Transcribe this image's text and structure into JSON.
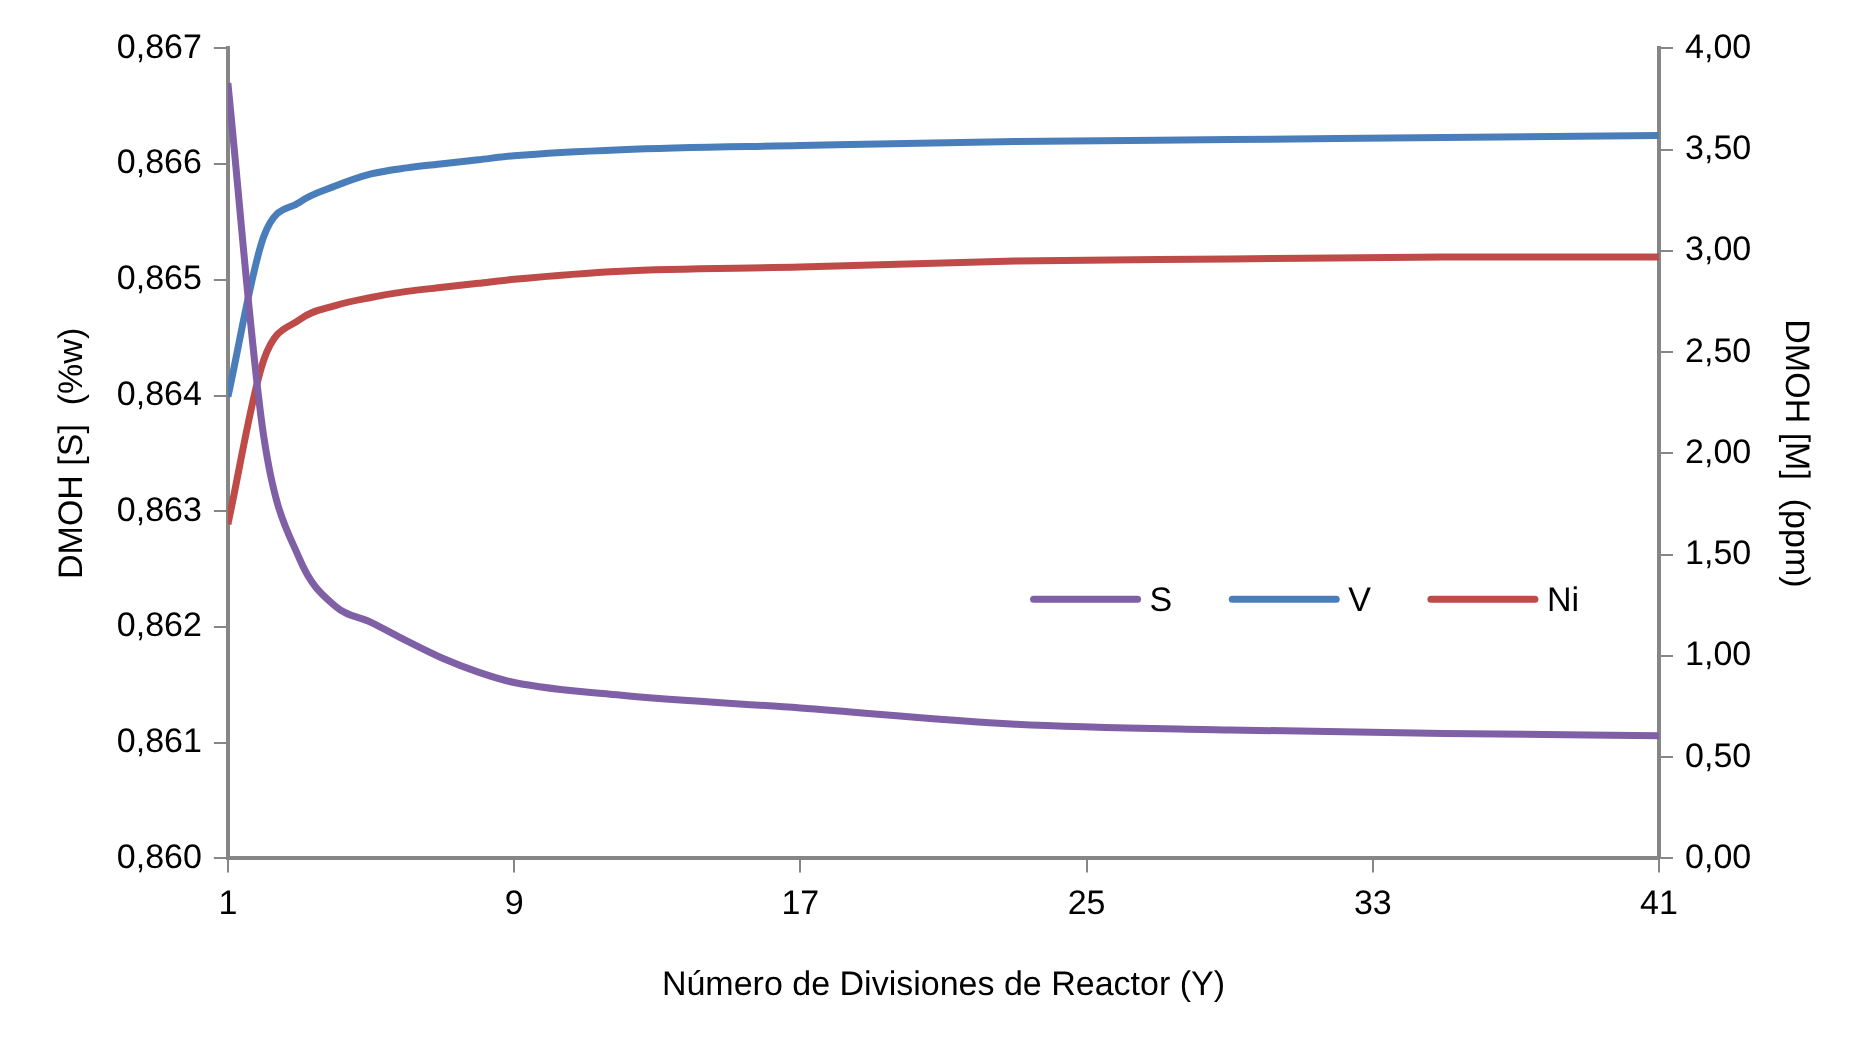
{
  "chart_data": {
    "type": "line",
    "xlabel": "Número de Divisiones de Reactor (Y)",
    "ylabel": "DMOH [S]  (%w)",
    "y2label": "DMOH [M]  (ppm)",
    "x": [
      1,
      2,
      3,
      4,
      5,
      6,
      7,
      8,
      9,
      12,
      17,
      23,
      29,
      35,
      41
    ],
    "series": [
      {
        "name": "S",
        "color": "#7f5fa5",
        "values": [
          0.8667,
          0.86365,
          0.86259,
          0.86218,
          0.86204,
          0.86188,
          0.86173,
          0.86161,
          0.86152,
          0.86141,
          0.8613,
          0.86116,
          0.86111,
          0.86108,
          0.86106
        ]
      },
      {
        "name": "V",
        "color": "#4a7ebb",
        "axis": "y2",
        "values": [
          2.28,
          3.07,
          3.24,
          3.32,
          3.38,
          3.41,
          3.43,
          3.45,
          3.47,
          3.5,
          3.52,
          3.54,
          3.55,
          3.56,
          3.57
        ]
      },
      {
        "name": "Ni",
        "color": "#be4b48",
        "axis": "y2",
        "values": [
          1.65,
          2.46,
          2.66,
          2.73,
          2.77,
          2.8,
          2.82,
          2.84,
          2.86,
          2.9,
          2.92,
          2.95,
          2.96,
          2.97,
          2.97
        ]
      }
    ],
    "xlim": [
      1,
      41
    ],
    "xticks": [
      1,
      9,
      17,
      25,
      33,
      41
    ],
    "ylim": [
      0.86,
      0.867
    ],
    "yticks": [
      {
        "value": 0.86,
        "label": "0,860"
      },
      {
        "value": 0.861,
        "label": "0,861"
      },
      {
        "value": 0.862,
        "label": "0,862"
      },
      {
        "value": 0.863,
        "label": "0,863"
      },
      {
        "value": 0.864,
        "label": "0,864"
      },
      {
        "value": 0.865,
        "label": "0,865"
      },
      {
        "value": 0.866,
        "label": "0,866"
      },
      {
        "value": 0.867,
        "label": "0,867"
      }
    ],
    "y2lim": [
      0,
      4
    ],
    "y2ticks": [
      {
        "value": 0,
        "label": "0,00"
      },
      {
        "value": 0.5,
        "label": "0,50"
      },
      {
        "value": 1,
        "label": "1,00"
      },
      {
        "value": 1.5,
        "label": "1,50"
      },
      {
        "value": 2,
        "label": "2,00"
      },
      {
        "value": 2.5,
        "label": "2,50"
      },
      {
        "value": 3,
        "label": "3,00"
      },
      {
        "value": 3.5,
        "label": "3,50"
      },
      {
        "value": 4,
        "label": "4,00"
      }
    ],
    "grid": false,
    "legend": "bottom right",
    "marker": "none",
    "line_style": "solid"
  }
}
